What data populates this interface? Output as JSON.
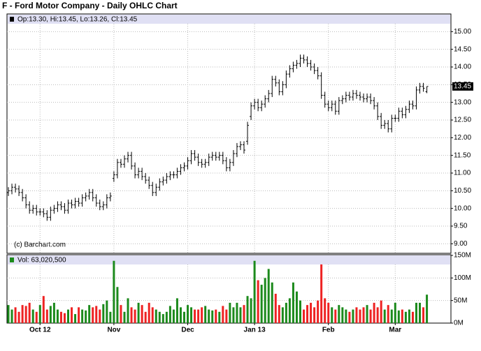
{
  "chart_data": {
    "type": "ohlc",
    "title": "F - Ford Motor Company - Daily OHLC Chart",
    "quote": "Op:13.30, Hi:13.45, Lo:13.26, Cl:13.45",
    "credit": "(c) Barchart.com",
    "volume_label": "Vol: 63,020,500",
    "categories": [
      null,
      null,
      null,
      null,
      null,
      null,
      null,
      null,
      null,
      "Oct 12",
      null,
      null,
      null,
      null,
      null,
      null,
      null,
      null,
      null,
      null,
      null,
      null,
      null,
      null,
      null,
      null,
      null,
      null,
      null,
      null,
      "Nov",
      null,
      null,
      null,
      null,
      null,
      null,
      null,
      null,
      null,
      null,
      null,
      null,
      null,
      null,
      null,
      null,
      null,
      null,
      null,
      null,
      "Dec",
      null,
      null,
      null,
      null,
      null,
      null,
      null,
      null,
      null,
      null,
      null,
      null,
      null,
      null,
      null,
      null,
      null,
      null,
      "Jan 13",
      null,
      null,
      null,
      null,
      null,
      null,
      null,
      null,
      null,
      null,
      null,
      null,
      null,
      null,
      null,
      null,
      null,
      null,
      null,
      null,
      "Feb",
      null,
      null,
      null,
      null,
      null,
      null,
      null,
      null,
      null,
      null,
      null,
      null,
      null,
      null,
      null,
      null,
      null,
      null,
      "Mar",
      null,
      null,
      null,
      null,
      null,
      null,
      null,
      null,
      null
    ],
    "open": [
      10.45,
      10.5,
      10.6,
      10.55,
      10.45,
      10.3,
      10.1,
      9.95,
      10.0,
      9.9,
      9.9,
      9.85,
      9.75,
      9.95,
      10.0,
      10.1,
      10.05,
      9.95,
      10.15,
      10.1,
      10.2,
      10.15,
      10.3,
      10.35,
      10.45,
      10.3,
      10.15,
      10.05,
      10.1,
      10.3,
      10.85,
      10.95,
      11.3,
      11.25,
      11.4,
      11.5,
      11.2,
      10.95,
      11.05,
      10.9,
      10.8,
      10.65,
      10.45,
      10.6,
      10.75,
      10.8,
      10.9,
      10.95,
      10.95,
      11.05,
      11.15,
      11.2,
      11.35,
      11.55,
      11.45,
      11.3,
      11.25,
      11.3,
      11.45,
      11.5,
      11.45,
      11.5,
      11.35,
      11.15,
      11.3,
      11.55,
      11.75,
      11.8,
      11.9,
      12.6,
      12.9,
      13.0,
      12.85,
      12.95,
      13.1,
      13.25,
      13.65,
      13.55,
      13.3,
      13.5,
      13.8,
      13.95,
      14.05,
      14.1,
      14.25,
      14.2,
      14.1,
      14.0,
      13.9,
      13.75,
      13.2,
      12.95,
      12.85,
      12.95,
      12.75,
      13.05,
      13.1,
      13.2,
      13.15,
      13.25,
      13.2,
      13.15,
      13.1,
      13.15,
      13.05,
      12.9,
      12.6,
      12.35,
      12.4,
      12.25,
      12.55,
      12.55,
      12.75,
      12.65,
      12.8,
      12.95,
      12.9,
      13.35,
      13.45,
      13.3
    ],
    "high": [
      10.6,
      10.7,
      10.7,
      10.65,
      10.55,
      10.4,
      10.2,
      10.1,
      10.1,
      10.0,
      10.0,
      9.95,
      10.05,
      10.1,
      10.2,
      10.2,
      10.15,
      10.25,
      10.25,
      10.3,
      10.3,
      10.4,
      10.45,
      10.55,
      10.55,
      10.4,
      10.25,
      10.2,
      10.4,
      10.45,
      11.05,
      11.4,
      11.4,
      11.5,
      11.6,
      11.6,
      11.3,
      11.15,
      11.15,
      11.0,
      10.9,
      10.75,
      10.7,
      10.85,
      10.9,
      11.0,
      11.05,
      11.05,
      11.15,
      11.25,
      11.3,
      11.45,
      11.65,
      11.65,
      11.55,
      11.4,
      11.4,
      11.55,
      11.6,
      11.6,
      11.6,
      11.6,
      11.45,
      11.4,
      11.65,
      11.85,
      11.9,
      11.9,
      12.45,
      13.0,
      13.1,
      13.1,
      13.05,
      13.2,
      13.35,
      13.75,
      13.75,
      13.65,
      13.6,
      13.9,
      14.05,
      14.15,
      14.2,
      14.35,
      14.35,
      14.3,
      14.2,
      14.1,
      14.0,
      13.85,
      13.3,
      13.05,
      13.05,
      13.05,
      13.15,
      13.2,
      13.3,
      13.3,
      13.35,
      13.35,
      13.3,
      13.25,
      13.25,
      13.25,
      13.15,
      13.0,
      12.7,
      12.5,
      12.5,
      12.65,
      12.65,
      12.85,
      12.85,
      12.9,
      13.05,
      13.05,
      13.45,
      13.55,
      13.55,
      13.45
    ],
    "low": [
      10.35,
      10.4,
      10.45,
      10.35,
      10.2,
      10.0,
      9.85,
      9.85,
      9.8,
      9.8,
      9.75,
      9.65,
      9.65,
      9.85,
      9.9,
      9.95,
      9.85,
      9.85,
      10.0,
      10.0,
      10.05,
      10.05,
      10.2,
      10.25,
      10.2,
      10.05,
      9.95,
      9.95,
      10.0,
      10.2,
      10.75,
      10.85,
      11.15,
      11.15,
      11.3,
      11.1,
      10.85,
      10.85,
      10.8,
      10.7,
      10.55,
      10.35,
      10.35,
      10.5,
      10.65,
      10.7,
      10.8,
      10.85,
      10.85,
      10.95,
      11.05,
      11.1,
      11.25,
      11.35,
      11.2,
      11.15,
      11.15,
      11.2,
      11.35,
      11.35,
      11.35,
      11.25,
      11.05,
      11.05,
      11.2,
      11.45,
      11.65,
      11.55,
      11.8,
      12.5,
      12.8,
      12.75,
      12.75,
      12.85,
      13.0,
      13.15,
      13.45,
      13.2,
      13.2,
      13.4,
      13.7,
      13.85,
      13.95,
      14.0,
      14.1,
      14.0,
      13.9,
      13.8,
      13.65,
      13.1,
      12.85,
      12.75,
      12.75,
      12.65,
      12.65,
      12.95,
      13.0,
      13.05,
      13.05,
      13.1,
      13.05,
      13.0,
      13.0,
      12.95,
      12.8,
      12.5,
      12.25,
      12.25,
      12.15,
      12.15,
      12.45,
      12.45,
      12.55,
      12.55,
      12.7,
      12.8,
      12.8,
      13.25,
      13.3,
      13.26
    ],
    "close": [
      10.5,
      10.6,
      10.55,
      10.45,
      10.3,
      10.1,
      9.95,
      10.0,
      9.9,
      9.9,
      9.85,
      9.75,
      9.95,
      10.0,
      10.1,
      10.05,
      9.95,
      10.15,
      10.1,
      10.2,
      10.15,
      10.3,
      10.35,
      10.45,
      10.3,
      10.15,
      10.05,
      10.1,
      10.3,
      10.35,
      10.95,
      11.3,
      11.25,
      11.4,
      11.5,
      11.2,
      10.95,
      11.05,
      10.9,
      10.8,
      10.65,
      10.45,
      10.6,
      10.75,
      10.8,
      10.9,
      10.95,
      10.95,
      11.05,
      11.15,
      11.2,
      11.35,
      11.55,
      11.45,
      11.3,
      11.25,
      11.3,
      11.45,
      11.5,
      11.45,
      11.5,
      11.35,
      11.15,
      11.3,
      11.55,
      11.75,
      11.8,
      11.65,
      12.35,
      12.9,
      13.0,
      12.85,
      12.95,
      13.1,
      13.25,
      13.65,
      13.55,
      13.3,
      13.5,
      13.8,
      13.95,
      14.05,
      14.1,
      14.25,
      14.2,
      14.1,
      14.0,
      13.9,
      13.75,
      13.2,
      12.95,
      12.85,
      12.95,
      12.75,
      13.05,
      13.1,
      13.2,
      13.15,
      13.25,
      13.2,
      13.15,
      13.1,
      13.15,
      13.05,
      12.9,
      12.6,
      12.35,
      12.4,
      12.25,
      12.55,
      12.55,
      12.75,
      12.65,
      12.8,
      12.95,
      12.9,
      13.35,
      13.45,
      13.4,
      13.45
    ],
    "volume": [
      40,
      30,
      35,
      25,
      40,
      38,
      45,
      30,
      25,
      40,
      60,
      30,
      38,
      45,
      30,
      25,
      22,
      30,
      35,
      20,
      35,
      30,
      28,
      40,
      35,
      38,
      30,
      42,
      50,
      25,
      138,
      80,
      40,
      25,
      55,
      35,
      30,
      45,
      40,
      25,
      45,
      35,
      30,
      25,
      20,
      25,
      38,
      30,
      55,
      35,
      25,
      40,
      35,
      30,
      30,
      35,
      38,
      30,
      28,
      30,
      25,
      38,
      30,
      45,
      35,
      45,
      35,
      40,
      60,
      55,
      138,
      95,
      85,
      100,
      120,
      90,
      65,
      40,
      35,
      45,
      55,
      90,
      70,
      50,
      30,
      40,
      45,
      35,
      50,
      130,
      55,
      45,
      35,
      30,
      40,
      35,
      30,
      25,
      30,
      35,
      30,
      35,
      40,
      30,
      45,
      35,
      50,
      30,
      40,
      30,
      45,
      28,
      30,
      25,
      30,
      25,
      45,
      45,
      35,
      63.02
    ],
    "ylim": [
      8.75,
      15.5
    ],
    "yticks": [
      {
        "value": 9,
        "label": "9.00"
      },
      {
        "value": 9.5,
        "label": "9.50"
      },
      {
        "value": 10,
        "label": "10.00"
      },
      {
        "value": 10.5,
        "label": "10.50"
      },
      {
        "value": 11,
        "label": "11.00"
      },
      {
        "value": 11.5,
        "label": "11.50"
      },
      {
        "value": 12,
        "label": "12.00"
      },
      {
        "value": 12.5,
        "label": "12.50"
      },
      {
        "value": 13,
        "label": "13.00"
      },
      {
        "value": 13.5,
        "label": "13.50"
      },
      {
        "value": 14,
        "label": "14.00"
      },
      {
        "value": 14.5,
        "label": "14.50"
      },
      {
        "value": 15,
        "label": "15.00"
      }
    ],
    "y2lim": [
      0,
      150
    ],
    "y2ticks": [
      {
        "value": 0,
        "label": "0M"
      },
      {
        "value": 50,
        "label": "50M"
      },
      {
        "value": 100,
        "label": "100M"
      },
      {
        "value": 150,
        "label": "150M"
      }
    ],
    "bar_color": "#000000",
    "up_color": "#1c8a1c",
    "down_color": "#ee2222",
    "grid": true
  }
}
